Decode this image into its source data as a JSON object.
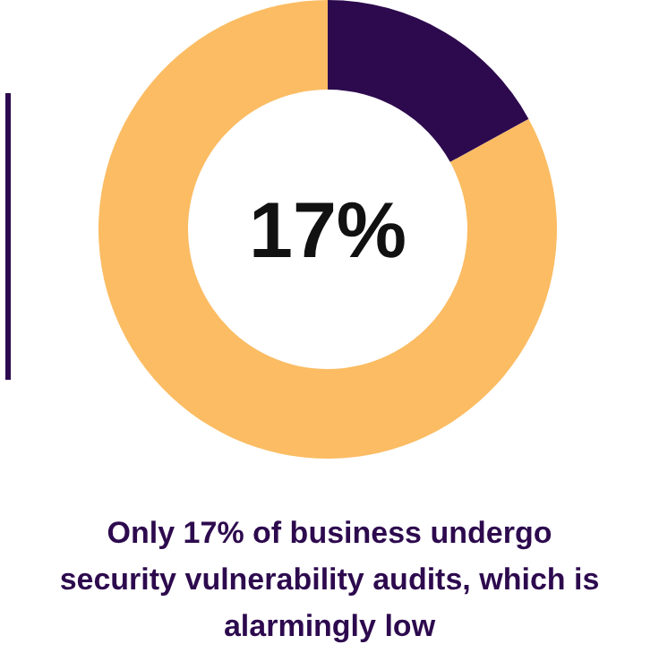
{
  "chart_data": {
    "type": "donut",
    "title": "17%",
    "categories": [
      null,
      null
    ],
    "values": [
      17,
      83
    ],
    "colors": [
      "#2d0a4e",
      "#fbbc63"
    ],
    "annotations": [
      "Only 17% of business undergo security vulnerability audits, which is alarmingly low"
    ]
  }
}
